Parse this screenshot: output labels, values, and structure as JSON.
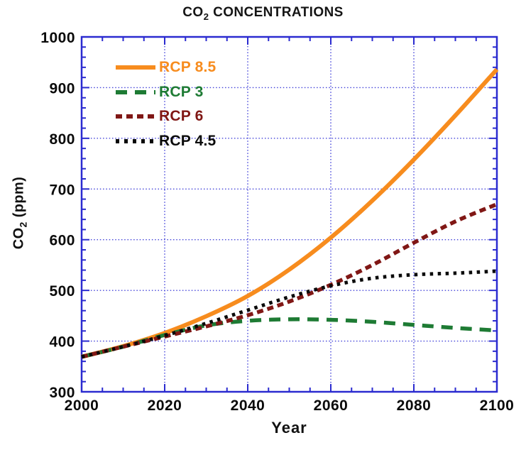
{
  "title": {
    "prefix": "CO",
    "subscript": "2",
    "suffix": " CONCENTRATIONS"
  },
  "y_axis": {
    "label_prefix": "CO",
    "label_subscript": "2",
    "label_suffix": " (ppm)"
  },
  "x_axis": {
    "label": "Year"
  },
  "chart_data": {
    "type": "line",
    "title": "CO2 CONCENTRATIONS",
    "xlabel": "Year",
    "ylabel": "CO2 (ppm)",
    "xlim": [
      2000,
      2100
    ],
    "ylim": [
      300,
      1000
    ],
    "x_major_ticks": [
      2000,
      2020,
      2040,
      2060,
      2080,
      2100
    ],
    "x_minor_step": 5,
    "y_major_ticks": [
      300,
      400,
      500,
      600,
      700,
      800,
      900,
      1000
    ],
    "y_minor_step": 20,
    "grid": "blue dotted lines at interior major ticks",
    "legend_position": "top-left inside plot",
    "frame_color": "#2B2BD0",
    "grid_color": "#4343D9",
    "x": [
      2000,
      2010,
      2020,
      2030,
      2040,
      2050,
      2060,
      2070,
      2080,
      2090,
      2100
    ],
    "series": [
      {
        "name": "RCP 8.5",
        "color": "#F78C1E",
        "style": "solid",
        "values": [
          369,
          390,
          416,
          449,
          489,
          541,
          604,
          677,
          758,
          845,
          936
        ]
      },
      {
        "name": "RCP 3",
        "color": "#1E7B34",
        "style": "long-dash",
        "values": [
          369,
          389,
          412,
          431,
          440,
          443,
          442,
          438,
          432,
          426,
          421
        ]
      },
      {
        "name": "RCP 6",
        "color": "#801715",
        "style": "short-dash",
        "values": [
          369,
          389,
          409,
          429,
          451,
          478,
          511,
          550,
          594,
          636,
          670
        ]
      },
      {
        "name": "RCP 4.5",
        "color": "#0a0a0a",
        "style": "dotted",
        "values": [
          369,
          389,
          411,
          435,
          461,
          487,
          509,
          524,
          531,
          534,
          538
        ]
      }
    ]
  }
}
